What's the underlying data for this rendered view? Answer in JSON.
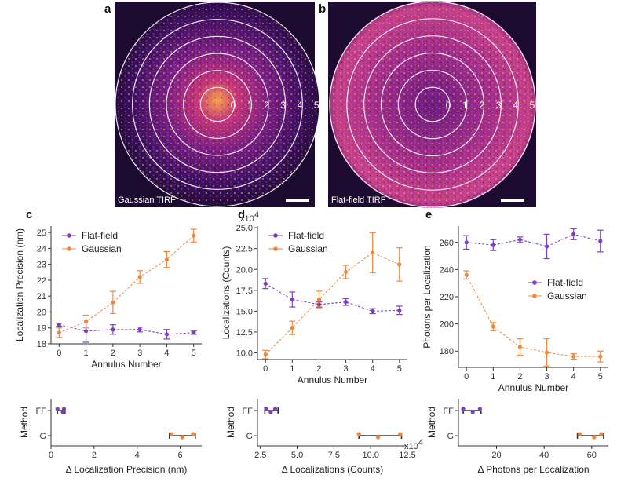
{
  "colors": {
    "flat": "#7b3fbe",
    "gauss": "#f0873c",
    "range_bar": "#333333",
    "image_bg": "#1c0a30"
  },
  "panels": {
    "a": {
      "letter": "a",
      "caption": "Gaussian TIRF",
      "rings": [
        "0",
        "1",
        "2",
        "3",
        "4",
        "5"
      ]
    },
    "b": {
      "letter": "b",
      "caption": "Flat-field TIRF",
      "rings": [
        "0",
        "1",
        "2",
        "3",
        "4",
        "5"
      ]
    }
  },
  "chart_data": [
    {
      "id": "c",
      "letter": "c",
      "type": "line",
      "xlabel": "Annulus Number",
      "ylabel": "Localization Precision (nm)",
      "xlim": [
        -0.3,
        5.3
      ],
      "ylim": [
        18,
        25.4
      ],
      "xticks": [
        "0",
        "1",
        "2",
        "3",
        "4",
        "5"
      ],
      "yticks": [
        "18",
        "19",
        "20",
        "21",
        "22",
        "23",
        "24",
        "25"
      ],
      "legend": "top-left",
      "series": [
        {
          "name": "Flat-field",
          "color": "flat",
          "x": [
            0,
            1,
            2,
            3,
            4,
            5
          ],
          "y": [
            19.2,
            18.8,
            18.9,
            18.9,
            18.6,
            18.7
          ],
          "err": [
            0.1,
            0.7,
            0.3,
            0.15,
            0.3,
            0.1
          ]
        },
        {
          "name": "Gaussian",
          "color": "gauss",
          "x": [
            0,
            1,
            2,
            3,
            4,
            5
          ],
          "y": [
            18.7,
            19.4,
            20.6,
            22.2,
            23.3,
            24.8
          ],
          "err": [
            0.3,
            0.4,
            0.7,
            0.4,
            0.5,
            0.4
          ]
        }
      ]
    },
    {
      "id": "d",
      "letter": "d",
      "type": "line",
      "xlabel": "Annulus Number",
      "ylabel": "Localizations (Counts)",
      "exponent": "x10",
      "exponent_power": "4",
      "xlim": [
        -0.3,
        5.3
      ],
      "ylim": [
        9.2,
        25.2
      ],
      "xticks": [
        "0",
        "1",
        "2",
        "3",
        "4",
        "5"
      ],
      "yticks": [
        "10.0",
        "12.5",
        "15.0",
        "17.5",
        "20.0",
        "22.5",
        "25.0"
      ],
      "ytick_values": [
        10,
        12.5,
        15,
        17.5,
        20,
        22.5,
        25
      ],
      "legend": "top-left",
      "series": [
        {
          "name": "Flat-field",
          "color": "flat",
          "x": [
            0,
            1,
            2,
            3,
            4,
            5
          ],
          "y": [
            18.3,
            16.4,
            15.8,
            16.1,
            15.0,
            15.1
          ],
          "err": [
            0.6,
            0.9,
            0.3,
            0.4,
            0.3,
            0.5
          ]
        },
        {
          "name": "Gaussian",
          "color": "gauss",
          "x": [
            0,
            1,
            2,
            3,
            4,
            5
          ],
          "y": [
            9.8,
            13.0,
            16.4,
            19.7,
            22.0,
            20.6
          ],
          "err": [
            0.5,
            0.8,
            1.0,
            0.8,
            2.4,
            2.0
          ]
        }
      ]
    },
    {
      "id": "e",
      "letter": "e",
      "type": "line",
      "xlabel": "Annulus Number",
      "ylabel": "Photons per Localization",
      "xlim": [
        -0.3,
        5.3
      ],
      "ylim": [
        168,
        272
      ],
      "xticks": [
        "0",
        "1",
        "2",
        "3",
        "4",
        "5"
      ],
      "yticks": [
        "180",
        "200",
        "220",
        "240",
        "260"
      ],
      "ytick_values": [
        180,
        200,
        220,
        240,
        260
      ],
      "legend": "middle-right",
      "series": [
        {
          "name": "Flat-field",
          "color": "flat",
          "x": [
            0,
            1,
            2,
            3,
            4,
            5
          ],
          "y": [
            260,
            258,
            262,
            257,
            266,
            261
          ],
          "err": [
            5,
            4,
            2,
            9,
            4,
            8
          ]
        },
        {
          "name": "Gaussian",
          "color": "gauss",
          "x": [
            0,
            1,
            2,
            3,
            4,
            5
          ],
          "y": [
            236,
            198,
            183,
            179,
            176,
            176
          ],
          "err": [
            3,
            3,
            6,
            10,
            2,
            4
          ]
        }
      ]
    },
    {
      "id": "c2",
      "type": "scatter",
      "xlabel": "Δ Localization Precision (nm)",
      "ylabel": "Method",
      "xlim": [
        0,
        7
      ],
      "xticks": [
        "0",
        "2",
        "4",
        "6"
      ],
      "xtick_values": [
        0,
        2,
        4,
        6
      ],
      "categories": [
        "FF",
        "G"
      ],
      "groups": [
        {
          "category": "FF",
          "color": "flat",
          "points": [
            0.3,
            0.55,
            0.6
          ],
          "range": [
            0.3,
            0.65
          ]
        },
        {
          "category": "G",
          "color": "gauss",
          "points": [
            5.6,
            6.1,
            6.6
          ],
          "range": [
            5.5,
            6.7
          ]
        }
      ]
    },
    {
      "id": "d2",
      "type": "scatter",
      "xlabel": "Δ Localizations (Counts)",
      "ylabel": "Method",
      "exponent": "x10",
      "exponent_power": "4",
      "xlim": [
        2.3,
        12.5
      ],
      "xticks": [
        "2.5",
        "5.0",
        "7.5",
        "10.0",
        "12.5"
      ],
      "xtick_values": [
        2.5,
        5,
        7.5,
        10,
        12.5
      ],
      "categories": [
        "FF",
        "G"
      ],
      "groups": [
        {
          "category": "FF",
          "color": "flat",
          "points": [
            2.9,
            3.2,
            3.5
          ],
          "range": [
            2.8,
            3.7
          ]
        },
        {
          "category": "G",
          "color": "gauss",
          "points": [
            9.2,
            10.5,
            12.0
          ],
          "range": [
            9.2,
            12.1
          ]
        }
      ]
    },
    {
      "id": "e2",
      "type": "scatter",
      "xlabel": "Δ Photons per Localization",
      "ylabel": "Method",
      "xlim": [
        4,
        67
      ],
      "xticks": [
        "20",
        "40",
        "60"
      ],
      "xtick_values": [
        20,
        40,
        60
      ],
      "categories": [
        "FF",
        "G"
      ],
      "groups": [
        {
          "category": "FF",
          "color": "flat",
          "points": [
            6,
            10,
            13
          ],
          "range": [
            6,
            13.5
          ]
        },
        {
          "category": "G",
          "color": "gauss",
          "points": [
            55,
            61,
            64
          ],
          "range": [
            54,
            65
          ]
        }
      ]
    }
  ]
}
